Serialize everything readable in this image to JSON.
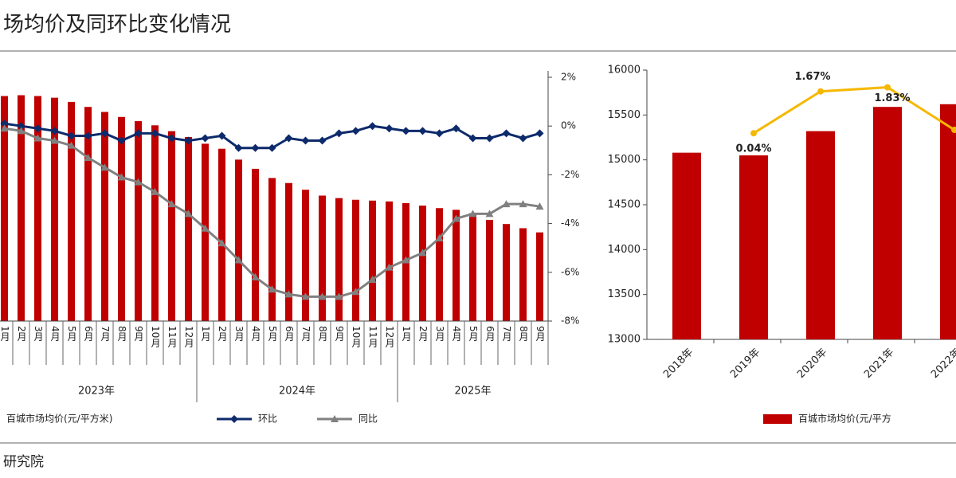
{
  "title": "场均价及同环比变化情况",
  "footer": "研究院",
  "chart_data": [
    {
      "type": "bar-line",
      "categories": [
        "1月",
        "2月",
        "3月",
        "4月",
        "5月",
        "6月",
        "7月",
        "8月",
        "9月",
        "10月",
        "11月",
        "12月",
        "1月",
        "2月",
        "3月",
        "4月",
        "5月",
        "6月",
        "7月",
        "8月",
        "9月",
        "10月",
        "11月",
        "12月",
        "1月",
        "2月",
        "3月",
        "4月",
        "5月",
        "6月",
        "7月",
        "8月",
        "9月"
      ],
      "groups": [
        {
          "label": "2023年",
          "span": 12
        },
        {
          "label": "2024年",
          "span": 12
        },
        {
          "label": "2025年",
          "span": 9
        }
      ],
      "ylim": [
        13000,
        16000
      ],
      "y2lim": [
        -8,
        2
      ],
      "y2ticks": [
        {
          "value": 2,
          "label": "2%"
        },
        {
          "value": 0,
          "label": "0%"
        },
        {
          "value": -2,
          "label": "-2%"
        },
        {
          "value": -4,
          "label": "-4%"
        },
        {
          "value": -6,
          "label": "-6%"
        },
        {
          "value": -8,
          "label": "-8%"
        }
      ],
      "series": [
        {
          "name": "百城市场均价(元/平方米)",
          "kind": "bar",
          "color": "#c00000",
          "values": [
            15690,
            15700,
            15690,
            15670,
            15620,
            15560,
            15500,
            15440,
            15390,
            15340,
            15270,
            15200,
            15120,
            15060,
            14930,
            14820,
            14710,
            14650,
            14570,
            14500,
            14470,
            14450,
            14440,
            14430,
            14410,
            14380,
            14350,
            14330,
            14290,
            14210,
            14160,
            14110,
            14060
          ]
        },
        {
          "name": "环比",
          "kind": "line",
          "axis": "y2",
          "color": "#0d2a6b",
          "marker": "diamond",
          "values": [
            0.1,
            0,
            -0.1,
            -0.2,
            -0.4,
            -0.4,
            -0.3,
            -0.6,
            -0.3,
            -0.3,
            -0.5,
            -0.6,
            -0.5,
            -0.4,
            -0.9,
            -0.9,
            -0.9,
            -0.5,
            -0.6,
            -0.6,
            -0.3,
            -0.2,
            0,
            -0.1,
            -0.2,
            -0.2,
            -0.3,
            -0.1,
            -0.5,
            -0.5,
            -0.3,
            -0.5,
            -0.3
          ]
        },
        {
          "name": "同比",
          "kind": "line",
          "axis": "y2",
          "color": "#808080",
          "marker": "triangle",
          "values": [
            -0.1,
            -0.2,
            -0.5,
            -0.6,
            -0.8,
            -1.3,
            -1.7,
            -2.1,
            -2.3,
            -2.7,
            -3.2,
            -3.6,
            -4.2,
            -4.8,
            -5.5,
            -6.2,
            -6.7,
            -6.9,
            -7.0,
            -7.0,
            -7.0,
            -6.8,
            -6.3,
            -5.8,
            -5.5,
            -5.2,
            -4.6,
            -3.8,
            -3.6,
            -3.6,
            -3.2,
            -3.2,
            -3.3
          ]
        }
      ]
    },
    {
      "type": "bar-line",
      "categories": [
        "2018年",
        "2019年",
        "2020年",
        "2021年",
        "2022年"
      ],
      "ylim": [
        13000,
        16000
      ],
      "yticks": [
        13000,
        13500,
        14000,
        14500,
        15000,
        15500,
        16000
      ],
      "y2lim": [
        -8,
        2.5
      ],
      "series": [
        {
          "name": "百城市场均价(元/平方",
          "kind": "bar",
          "color": "#c00000",
          "values": [
            15080,
            15050,
            15320,
            15590,
            15620
          ]
        },
        {
          "kind": "line",
          "axis": "y2",
          "color": "#f5b800",
          "marker": "circle",
          "values": [
            null,
            0.04,
            1.67,
            1.83,
            0.17
          ],
          "value_labels": [
            null,
            "0.04%",
            "1.67%",
            "1.83%",
            null
          ]
        }
      ]
    }
  ]
}
